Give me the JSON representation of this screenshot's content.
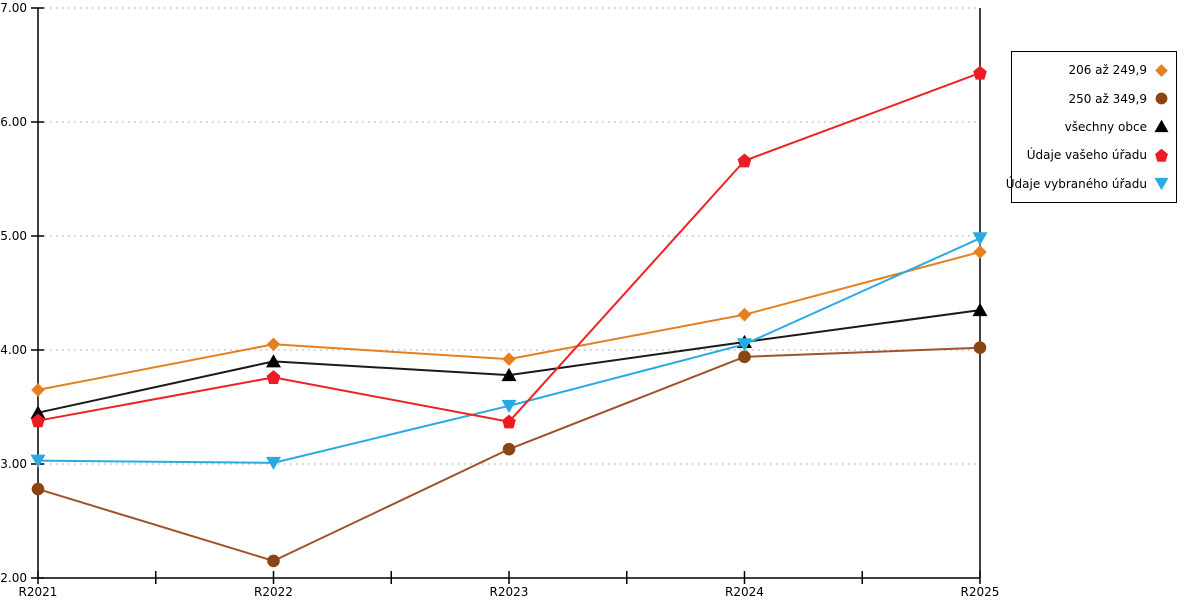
{
  "chart_data": {
    "type": "line",
    "title": "",
    "xlabel": "",
    "ylabel": "",
    "categories": [
      "R2021",
      "R2022",
      "R2023",
      "R2024",
      "R2025"
    ],
    "ylim": [
      2.0,
      7.0
    ],
    "ytick_labels": [
      "2.00",
      "3.00",
      "4.00",
      "5.00",
      "6.00",
      "7.00"
    ],
    "ytick_values": [
      2,
      3,
      4,
      5,
      6,
      7
    ],
    "grid": "horizontal-dotted",
    "legend_position": "right-outside",
    "series": [
      {
        "name": "206 až 249,9",
        "marker": "diamond",
        "color": "#E67F1E",
        "marker_color": "#E67F1E",
        "values": [
          3.65,
          4.05,
          3.92,
          4.31,
          4.86
        ]
      },
      {
        "name": "250 až 349,9",
        "marker": "circle",
        "color": "#A0522D",
        "marker_color": "#8B4513",
        "values": [
          2.78,
          2.15,
          3.13,
          3.94,
          4.02
        ]
      },
      {
        "name": "všechny obce",
        "marker": "triangle-up",
        "color": "#1A1A1A",
        "marker_color": "#000000",
        "values": [
          3.45,
          3.9,
          3.78,
          4.07,
          4.35
        ]
      },
      {
        "name": "Údaje vašeho úřadu",
        "marker": "pentagon",
        "color": "#EE2222",
        "marker_color": "#ED1C24",
        "values": [
          3.38,
          3.76,
          3.37,
          5.66,
          6.43
        ]
      },
      {
        "name": "Údaje vybraného úřadu",
        "marker": "triangle-down",
        "color": "#29ABE2",
        "marker_color": "#29ABE2",
        "values": [
          3.03,
          3.01,
          3.51,
          4.05,
          4.98
        ]
      }
    ],
    "draw_order": [
      1,
      0,
      2,
      4,
      3
    ]
  },
  "colors": {
    "axis": "#000000",
    "grid": "#B0B0B0",
    "tick_label": "#000000",
    "legend_border": "#000000",
    "background": "#FFFFFF"
  }
}
